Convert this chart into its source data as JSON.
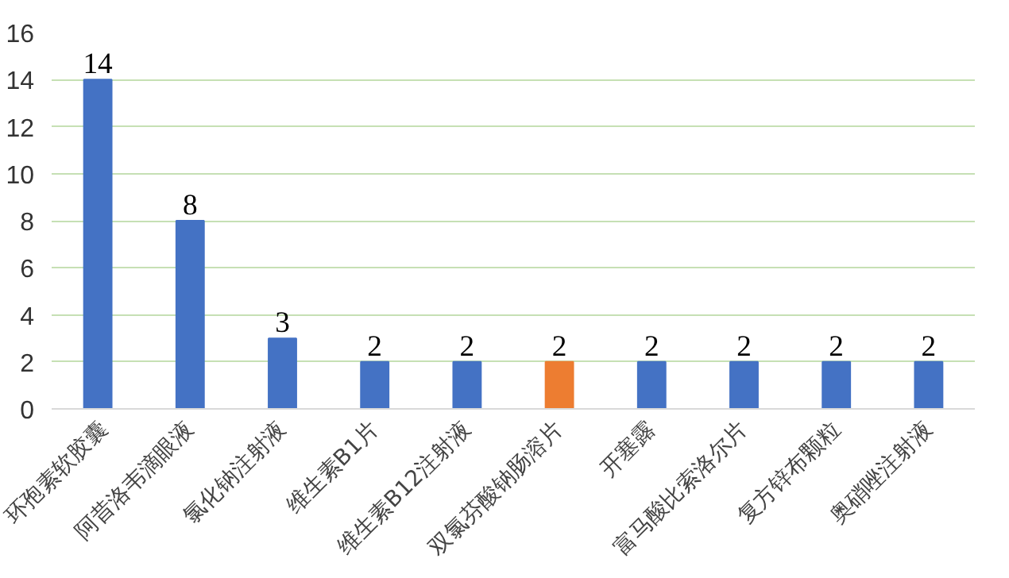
{
  "chart_data": {
    "type": "bar",
    "categories": [
      "环孢素软胶囊",
      "阿昔洛韦滴眼液",
      "氯化钠注射液",
      "维生素B1片",
      "维生素B12注射液",
      "双氯芬酸钠肠溶片",
      "开塞露",
      "富马酸比索洛尔片",
      "复方锌布颗粒",
      "奥硝唑注射液"
    ],
    "values": [
      14,
      8,
      3,
      2,
      2,
      2,
      2,
      2,
      2,
      2
    ],
    "colors": [
      "#4472c4",
      "#4472c4",
      "#4472c4",
      "#4472c4",
      "#4472c4",
      "#ed7d31",
      "#4472c4",
      "#4472c4",
      "#4472c4",
      "#4472c4"
    ],
    "ylim": [
      0,
      16
    ],
    "yticks": [
      0,
      2,
      4,
      6,
      8,
      10,
      12,
      14,
      16
    ],
    "grid": "y",
    "data_labels": true
  }
}
